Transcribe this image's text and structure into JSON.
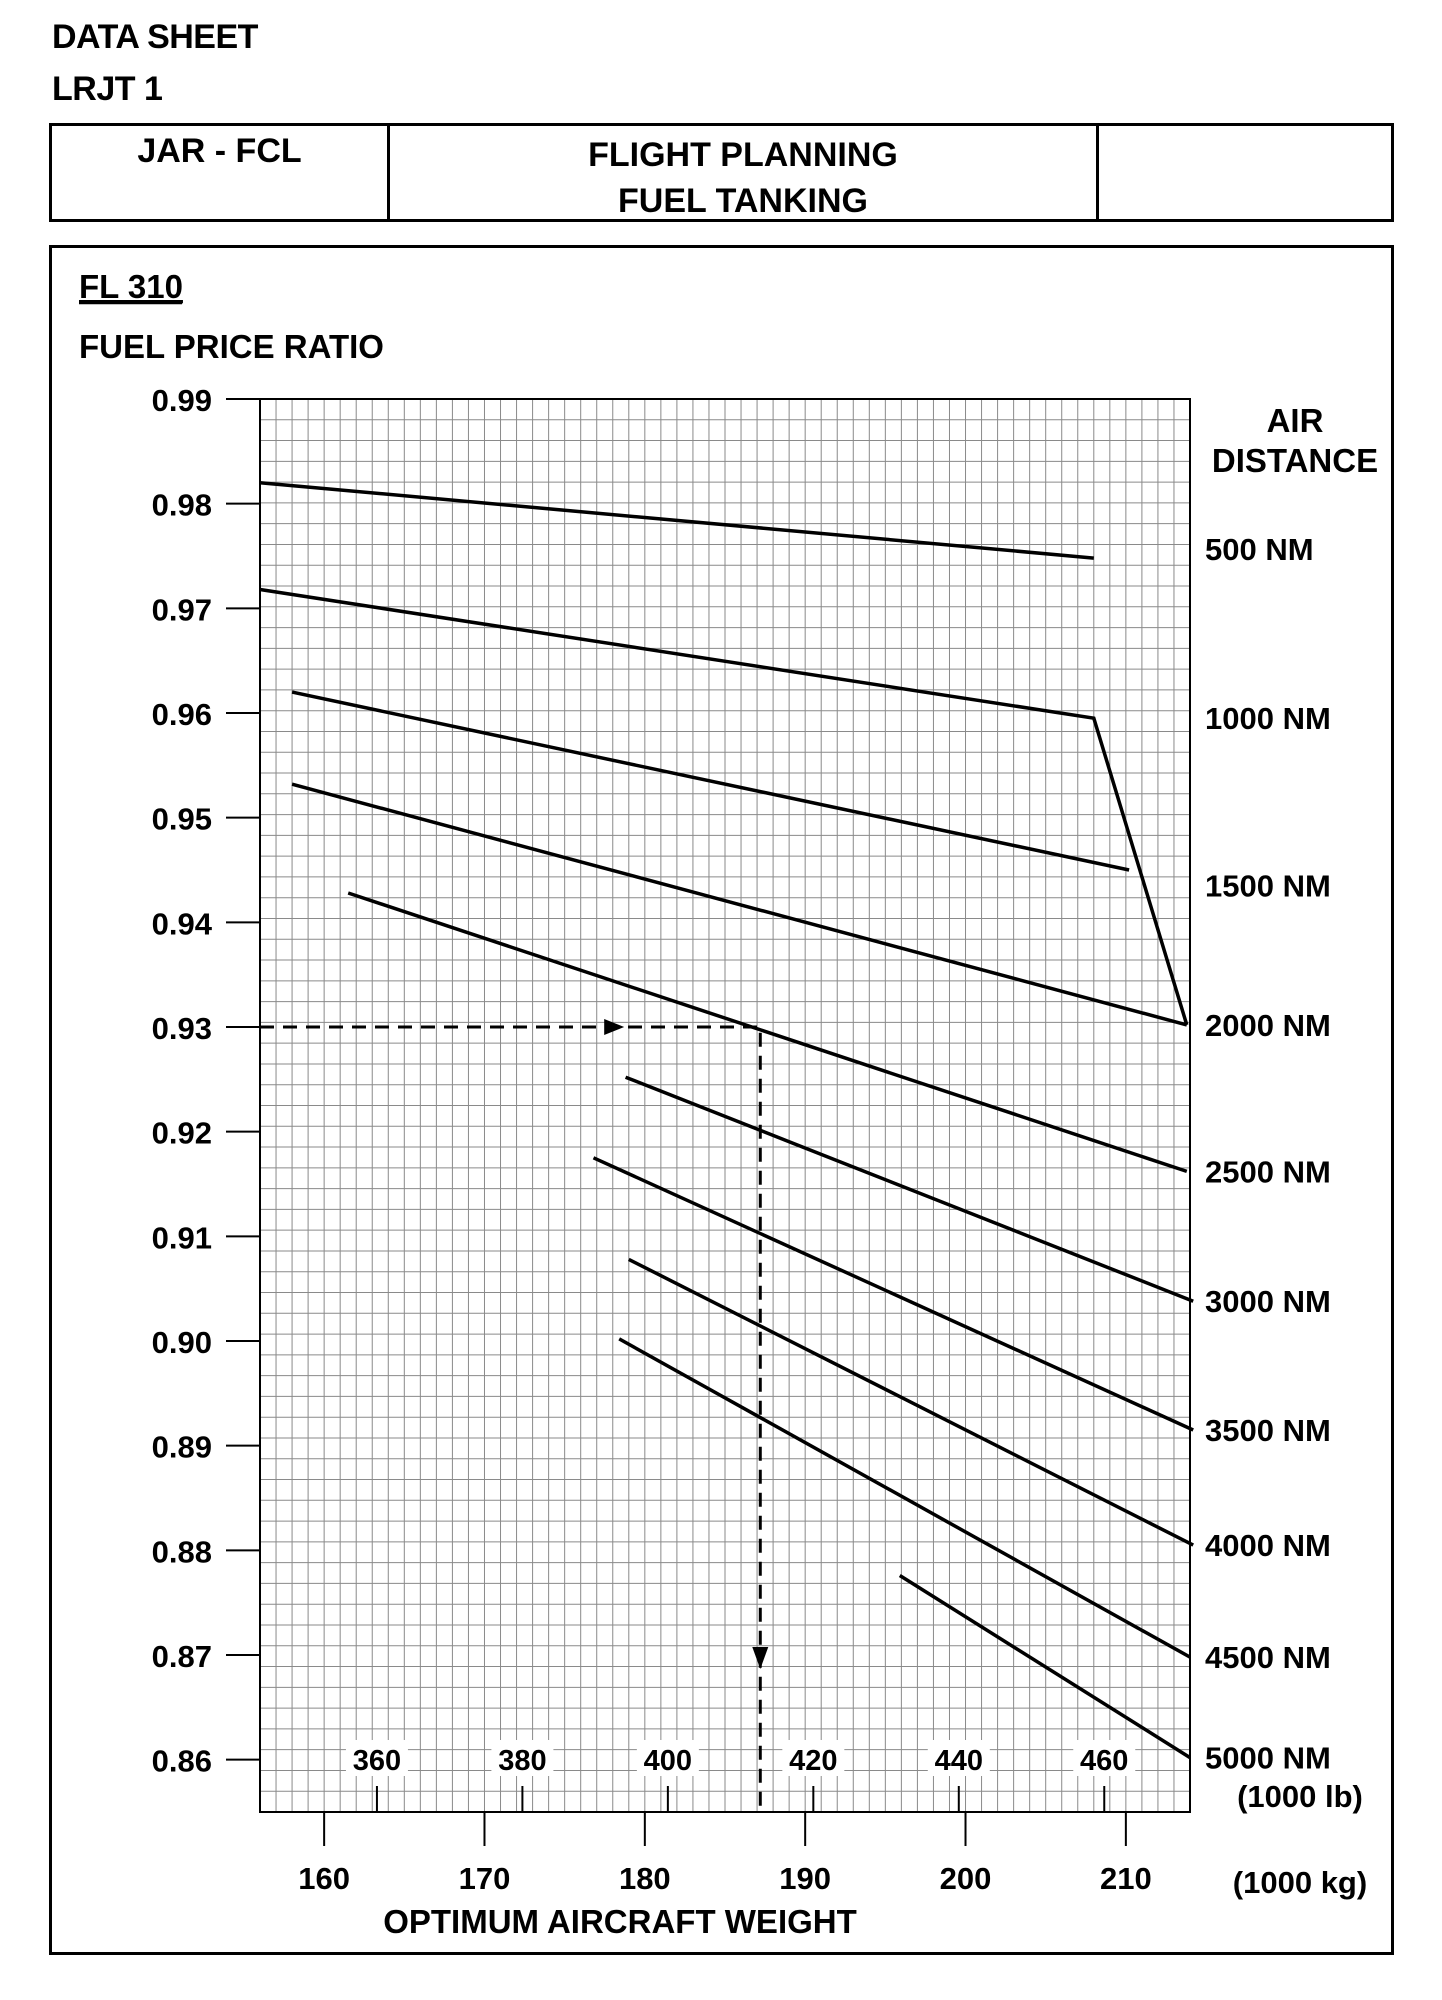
{
  "header": {
    "line1": "DATA SHEET",
    "line2": "LRJT 1",
    "cell_left": "JAR - FCL",
    "cell_center_line1": "FLIGHT PLANNING",
    "cell_center_line2": "FUEL TANKING",
    "cell_right": ""
  },
  "chart_data": {
    "type": "line",
    "title": "FL 310",
    "ylabel": "FUEL PRICE RATIO",
    "xlabel": "OPTIMUM AIRCRAFT WEIGHT",
    "x_unit_kg": "(1000 kg)",
    "x_unit_lb": "(1000 lb)",
    "legend_title_line1": "AIR",
    "legend_title_line2": "DISTANCE",
    "xlim": [
      156,
      214
    ],
    "ylim": [
      0.855,
      0.99
    ],
    "yticks": [
      "0.99",
      "0.98",
      "0.97",
      "0.96",
      "0.95",
      "0.94",
      "0.93",
      "0.92",
      "0.91",
      "0.90",
      "0.89",
      "0.88",
      "0.87",
      "0.86"
    ],
    "xticks_kg": [
      "160",
      "170",
      "180",
      "190",
      "200",
      "210"
    ],
    "xticks_lb": [
      "360",
      "380",
      "400",
      "420",
      "440",
      "460"
    ],
    "grid": true,
    "series": [
      {
        "name": "500 NM",
        "points": [
          [
            156,
            0.982
          ],
          [
            208,
            0.9748
          ]
        ]
      },
      {
        "name": "1000 NM",
        "points": [
          [
            156,
            0.9718
          ],
          [
            208,
            0.9595
          ],
          [
            213.8,
            0.9302
          ]
        ]
      },
      {
        "name": "1500 NM",
        "points": [
          [
            158,
            0.962
          ],
          [
            210.2,
            0.945
          ]
        ]
      },
      {
        "name": "2000 NM",
        "points": [
          [
            158,
            0.9532
          ],
          [
            213.8,
            0.9302
          ]
        ]
      },
      {
        "name": "2500 NM",
        "points": [
          [
            161.5,
            0.9428
          ],
          [
            213.8,
            0.9162
          ]
        ]
      },
      {
        "name": "3000 NM",
        "points": [
          [
            178.8,
            0.9252
          ],
          [
            214.2,
            0.9038
          ]
        ]
      },
      {
        "name": "3500 NM",
        "points": [
          [
            176.8,
            0.9175
          ],
          [
            214.2,
            0.8915
          ]
        ]
      },
      {
        "name": "4000 NM",
        "points": [
          [
            179,
            0.9078
          ],
          [
            214.2,
            0.8805
          ]
        ]
      },
      {
        "name": "4500 NM",
        "points": [
          [
            178.4,
            0.9002
          ],
          [
            214,
            0.8698
          ]
        ]
      },
      {
        "name": "5000 NM",
        "points": [
          [
            195.9,
            0.8776
          ],
          [
            214,
            0.8602
          ]
        ]
      }
    ],
    "example_path": {
      "fuel_price_ratio": 0.93,
      "weight_kg": 187.2
    }
  }
}
